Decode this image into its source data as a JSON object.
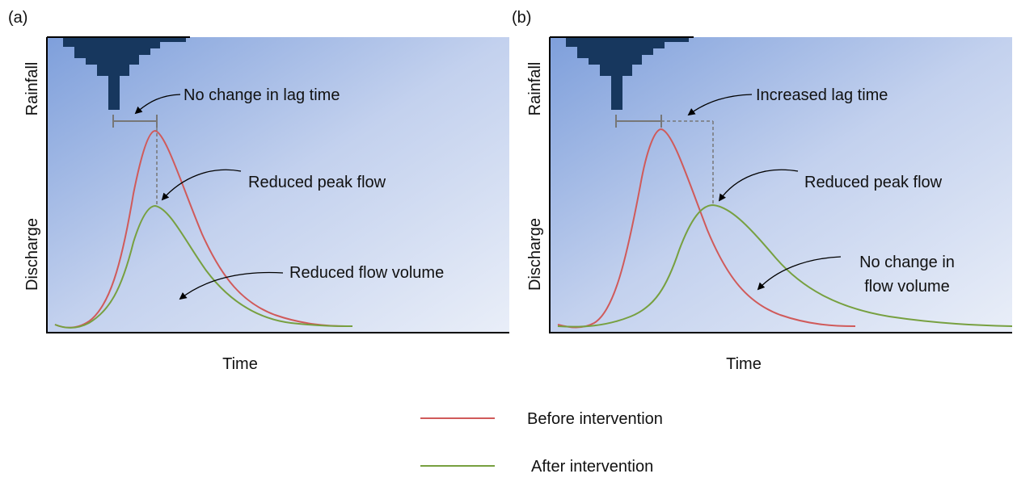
{
  "panels": [
    {
      "label": "(a)",
      "y_label_top": "Rainfall",
      "y_label_bottom": "Discharge",
      "x_label": "Time",
      "annotations": [
        "No change in lag time",
        "Reduced peak flow",
        "Reduced flow volume"
      ]
    },
    {
      "label": "(b)",
      "y_label_top": "Rainfall",
      "y_label_bottom": "Discharge",
      "x_label": "Time",
      "annotations": [
        "Increased lag time",
        "Reduced peak flow",
        "No change in",
        "flow volume"
      ]
    }
  ],
  "legend": [
    "Before intervention",
    "After intervention"
  ]
}
